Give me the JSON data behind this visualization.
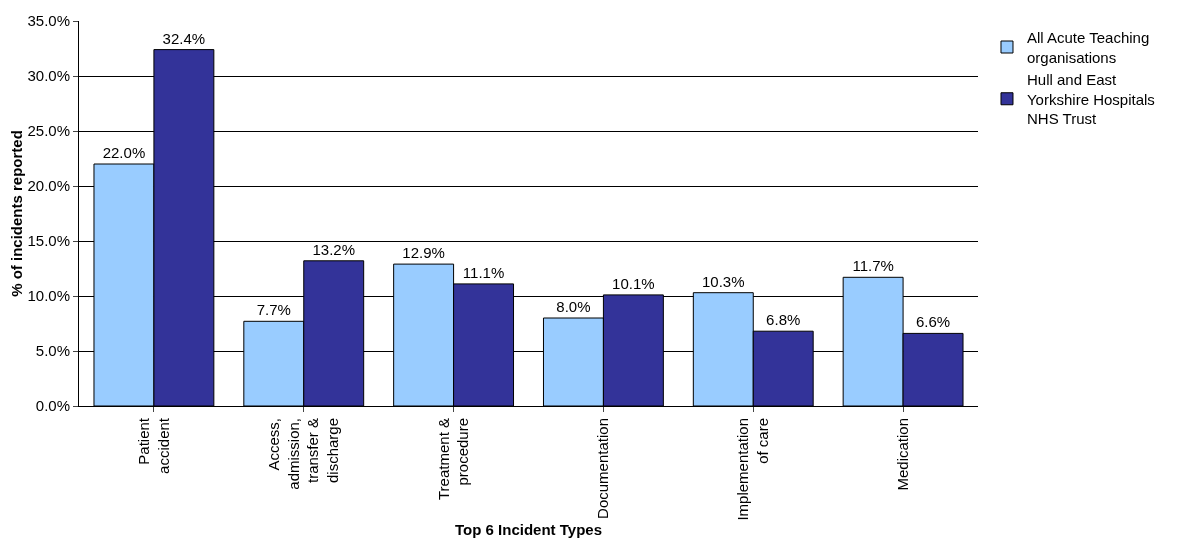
{
  "chart_data": {
    "type": "bar",
    "xlabel": "Top 6 Incident Types",
    "ylabel": "% of incidents reported",
    "categories": [
      "Patient\naccident",
      "Access,\nadmission,\ntransfer &\ndischarge",
      "Treatment &\nprocedure",
      "Documentation",
      "Implementation\nof care",
      "Medication"
    ],
    "series": [
      {
        "name": "All Acute Teaching\norganisations",
        "color": "#99ccff",
        "values": [
          22.0,
          7.7,
          12.9,
          8.0,
          10.3,
          11.7
        ],
        "value_labels": [
          "22.0%",
          "7.7%",
          "12.9%",
          "8.0%",
          "10.3%",
          "11.7%"
        ]
      },
      {
        "name": "Hull and East\nYorkshire Hospitals\nNHS Trust",
        "color": "#333399",
        "values": [
          32.4,
          13.2,
          11.1,
          10.1,
          6.8,
          6.6
        ],
        "value_labels": [
          "32.4%",
          "13.2%",
          "11.1%",
          "10.1%",
          "6.8%",
          "6.6%"
        ]
      }
    ],
    "ylim": [
      0,
      35
    ],
    "yticks": [
      {
        "value": 0,
        "label": "0.0%"
      },
      {
        "value": 5,
        "label": "5.0%"
      },
      {
        "value": 10,
        "label": "10.0%"
      },
      {
        "value": 15,
        "label": "15.0%"
      },
      {
        "value": 20,
        "label": "20.0%"
      },
      {
        "value": 25,
        "label": "25.0%"
      },
      {
        "value": 30,
        "label": "30.0%"
      },
      {
        "value": 35,
        "label": "35.0%"
      }
    ],
    "grid": "y",
    "legend": "top right"
  }
}
